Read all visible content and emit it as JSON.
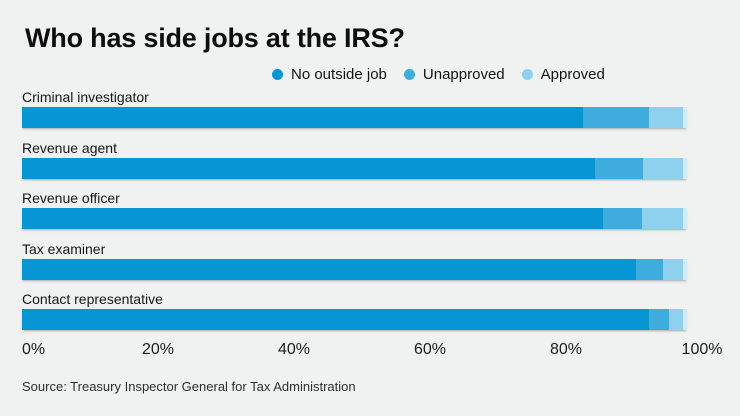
{
  "page": {
    "background": "#f0f2f1"
  },
  "title": "Who has side jobs at the IRS?",
  "legend": [
    {
      "label": "No outside job",
      "color": "#0895d3"
    },
    {
      "label": "Unapproved",
      "color": "#3eadde"
    },
    {
      "label": "Approved",
      "color": "#8ed1ee"
    }
  ],
  "chart_data": {
    "type": "bar",
    "orientation": "horizontal",
    "stacked": true,
    "unit": "%",
    "title": "Who has side jobs at the IRS?",
    "categories": [
      "Criminal investigator",
      "Revenue agent",
      "Revenue officer",
      "Tax examiner",
      "Contact representative"
    ],
    "series": [
      {
        "name": "No outside job",
        "color": "#0895d3",
        "values": [
          82.5,
          84.3,
          85.4,
          90.3,
          92.2
        ]
      },
      {
        "name": "Unapproved",
        "color": "#3eadde",
        "values": [
          9.7,
          7.0,
          5.8,
          4.0,
          2.9
        ]
      },
      {
        "name": "Approved",
        "color": "#8ed1ee",
        "values": [
          5.0,
          5.9,
          6.0,
          2.9,
          2.1
        ]
      }
    ],
    "xlim": [
      0,
      100
    ],
    "x_ticks": [
      "0%",
      "20%",
      "40%",
      "60%",
      "80%",
      "100%"
    ],
    "legend_position": "top",
    "grid": false,
    "bar_end_cap_color": "#d0eaf6"
  },
  "source": "Source: Treasury Inspector General for Tax Administration"
}
